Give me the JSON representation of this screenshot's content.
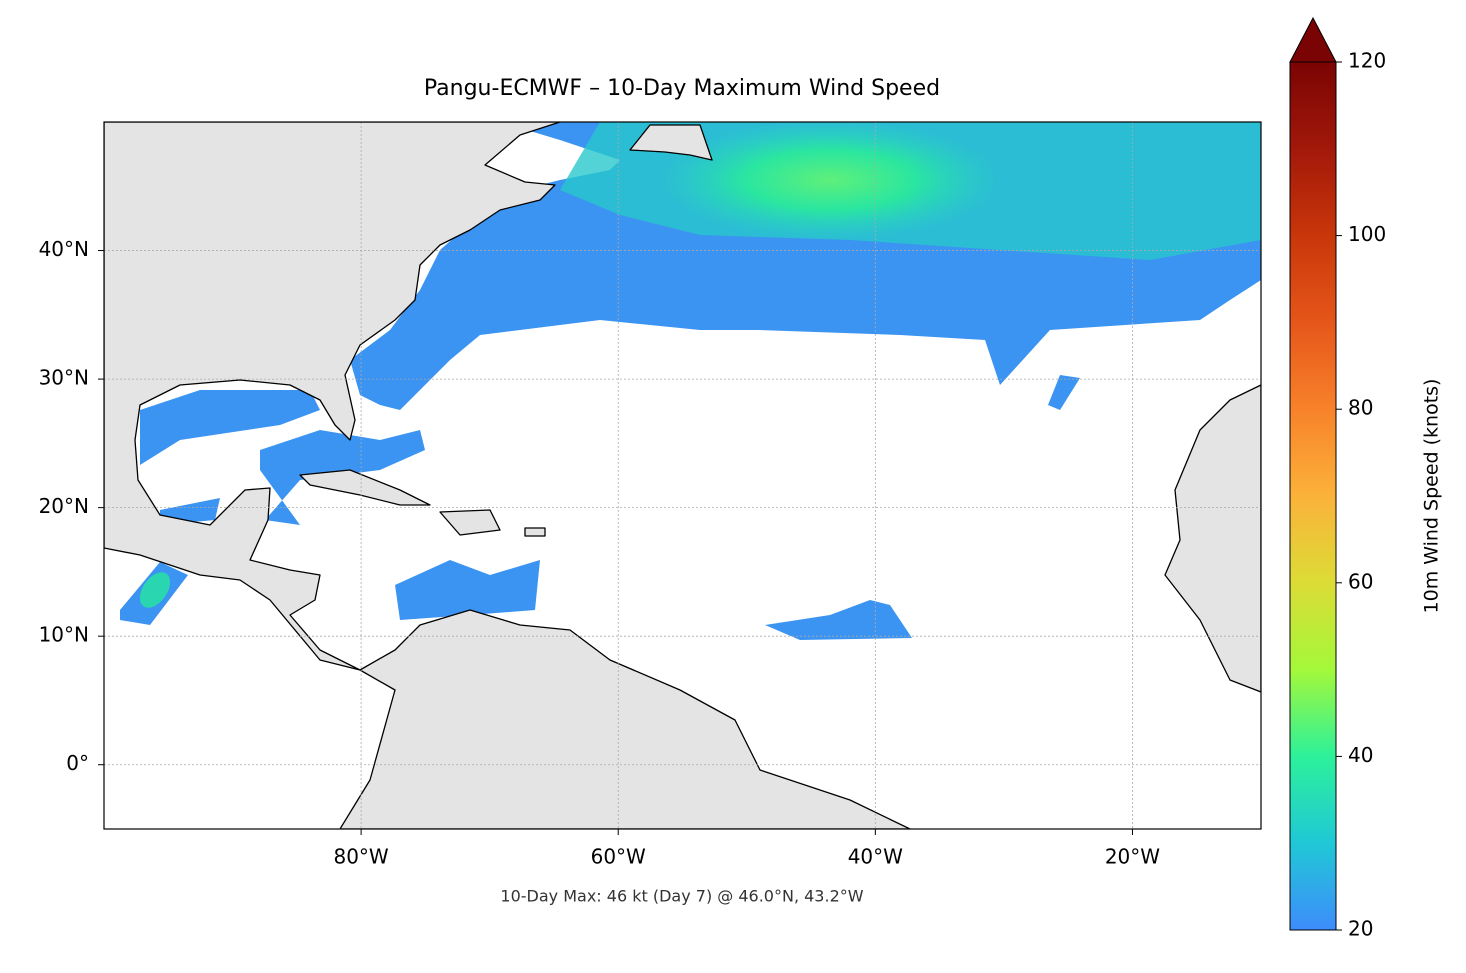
{
  "chart_data": {
    "type": "map",
    "title": "Pangu-ECMWF – 10-Day Maximum Wind Speed",
    "annotation": "10-Day Max: 46 kt (Day 7) @ 46.0°N, 43.2°W",
    "xlim": [
      -100,
      -10
    ],
    "ylim": [
      -5,
      50
    ],
    "xticks": [
      {
        "value": -80,
        "label": "80°W"
      },
      {
        "value": -60,
        "label": "60°W"
      },
      {
        "value": -40,
        "label": "40°W"
      },
      {
        "value": -20,
        "label": "20°W"
      }
    ],
    "yticks": [
      {
        "value": 0,
        "label": "0°"
      },
      {
        "value": 10,
        "label": "10°N"
      },
      {
        "value": 20,
        "label": "20°N"
      },
      {
        "value": 30,
        "label": "30°N"
      },
      {
        "value": 40,
        "label": "40°N"
      }
    ],
    "grid": true,
    "colorbar": {
      "label": "10m Wind Speed (knots)",
      "lim": [
        20,
        120
      ],
      "ticks": [
        20,
        40,
        60,
        80,
        100,
        120
      ],
      "extend": "max",
      "colors": [
        "#3e8cfb",
        "#20c8d6",
        "#2cf19a",
        "#a4f83a",
        "#dcdc36",
        "#fbb23a",
        "#f8822a",
        "#e5561a",
        "#c9360a",
        "#a2180a",
        "#7a0403"
      ]
    }
  }
}
